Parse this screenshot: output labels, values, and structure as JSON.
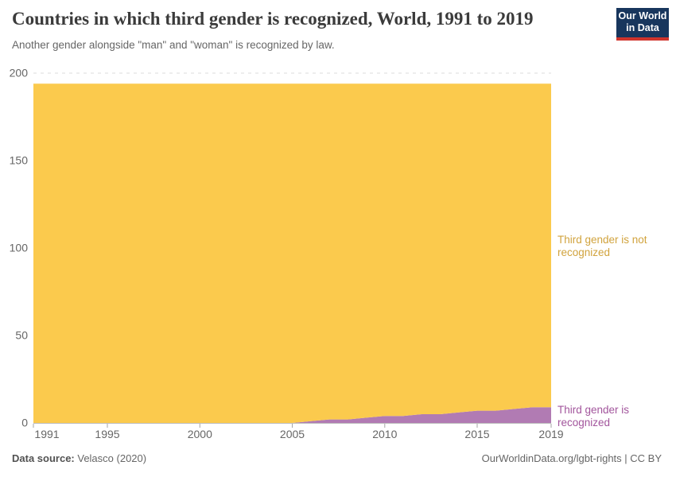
{
  "header": {
    "title": "Countries in which third gender is recognized, World, 1991 to 2019",
    "subtitle": "Another gender alongside \"man\" and \"woman\" is recognized by law.",
    "logo": {
      "line1": "Our World",
      "line2": "in Data",
      "bg": "#18365d",
      "accent": "#d0342c"
    }
  },
  "chart_data": {
    "type": "area",
    "stacked": true,
    "title": "Countries in which third gender is recognized, World, 1991 to 2019",
    "xlabel": "",
    "ylabel": "",
    "x": [
      1991,
      1992,
      1993,
      1994,
      1995,
      1996,
      1997,
      1998,
      1999,
      2000,
      2001,
      2002,
      2003,
      2004,
      2005,
      2006,
      2007,
      2008,
      2009,
      2010,
      2011,
      2012,
      2013,
      2014,
      2015,
      2016,
      2017,
      2018,
      2019
    ],
    "series": [
      {
        "id": "recognized",
        "name": "Third gender is recognized",
        "color": "#b17bb3",
        "label_color": "#a2559c",
        "values": [
          0,
          0,
          0,
          0,
          0,
          0,
          0,
          0,
          0,
          0,
          0,
          0,
          0,
          0,
          0,
          1,
          2,
          2,
          3,
          4,
          4,
          5,
          5,
          6,
          7,
          7,
          8,
          9,
          9
        ]
      },
      {
        "id": "not-recognized",
        "name": "Third gender is not recognized",
        "color": "#fbca4d",
        "label_color": "#d1a33d",
        "values": [
          194,
          194,
          194,
          194,
          194,
          194,
          194,
          194,
          194,
          194,
          194,
          194,
          194,
          194,
          194,
          193,
          192,
          192,
          191,
          190,
          190,
          189,
          189,
          188,
          187,
          187,
          186,
          185,
          185
        ]
      }
    ],
    "total_countries": 194,
    "ylim": [
      0,
      200
    ],
    "yticks": [
      0,
      50,
      100,
      150,
      200
    ],
    "xticks": [
      1991,
      1995,
      2000,
      2005,
      2010,
      2015,
      2019
    ],
    "grid": "dashed",
    "legend_position": "right-edge-labels"
  },
  "labels": {
    "not_recognized": {
      "line1": "Third gender is not",
      "line2": "recognized"
    },
    "recognized": {
      "line1": "Third gender is",
      "line2": "recognized"
    }
  },
  "footer": {
    "source_label": "Data source:",
    "source_value": " Velasco (2020)",
    "credit": "OurWorldinData.org/lgbt-rights | CC BY"
  }
}
